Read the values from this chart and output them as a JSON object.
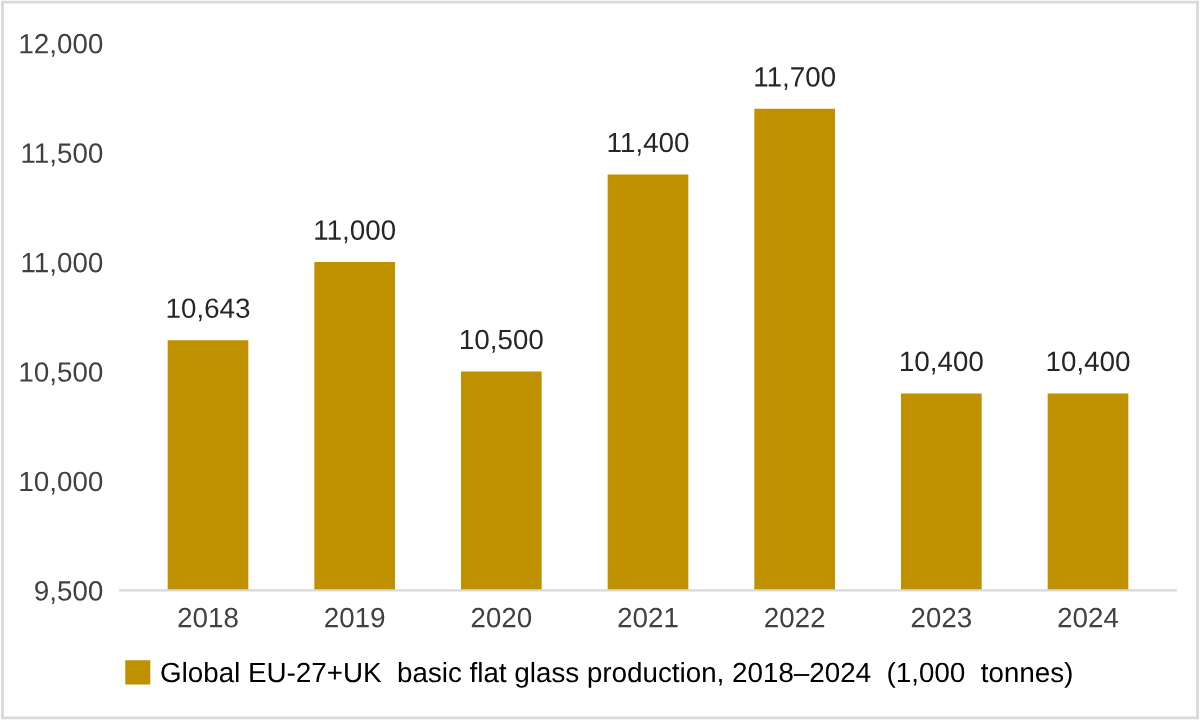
{
  "chart_data": {
    "type": "bar",
    "categories": [
      "2018",
      "2019",
      "2020",
      "2021",
      "2022",
      "2023",
      "2024"
    ],
    "series": [
      {
        "name": "Global EU-27+UK  basic flat glass production, 2018–2024  (1,000  tonnes)",
        "color": "#bf9000",
        "values": [
          10643,
          11000,
          10500,
          11400,
          11700,
          10400,
          10400
        ]
      }
    ],
    "value_labels": [
      "10,643",
      "11,000",
      "10,500",
      "11,400",
      "11,700",
      "10,400",
      "10,400"
    ],
    "ylim": [
      9500,
      12000
    ],
    "yticks": [
      {
        "value": 9500,
        "label": "9,500"
      },
      {
        "value": 10000,
        "label": "10,000"
      },
      {
        "value": 10500,
        "label": "10,500"
      },
      {
        "value": 11000,
        "label": "11,000"
      },
      {
        "value": 11500,
        "label": "11,500"
      },
      {
        "value": 12000,
        "label": "12,000"
      }
    ],
    "grid": false,
    "legend": "bottom"
  }
}
